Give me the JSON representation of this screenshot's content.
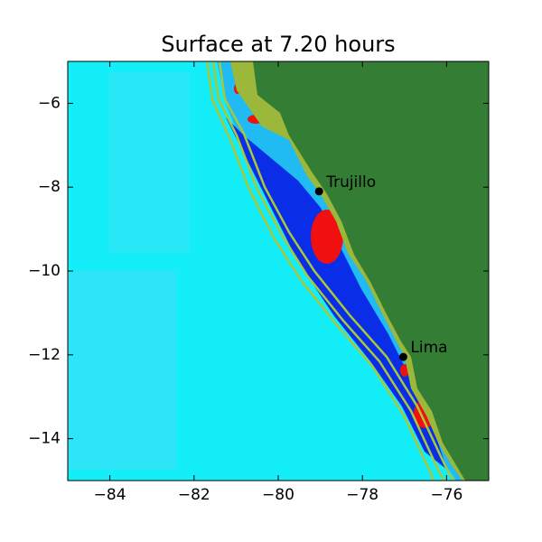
{
  "chart_data": {
    "type": "map",
    "title": "Surface at 7.20 hours",
    "xlim": [
      -85,
      -75
    ],
    "ylim": [
      -15,
      -5
    ],
    "xticks": [
      {
        "value": -84,
        "label": "−84"
      },
      {
        "value": -82,
        "label": "−82"
      },
      {
        "value": -80,
        "label": "−80"
      },
      {
        "value": -78,
        "label": "−78"
      },
      {
        "value": -76,
        "label": "−76"
      }
    ],
    "yticks": [
      {
        "value": -6,
        "label": "−6"
      },
      {
        "value": -8,
        "label": "−8"
      },
      {
        "value": -10,
        "label": "−10"
      },
      {
        "value": -12,
        "label": "−12"
      },
      {
        "value": -14,
        "label": "−14"
      }
    ],
    "cities": [
      {
        "name": "Trujillo",
        "x": -79.03,
        "y": -8.1
      },
      {
        "name": "Lima",
        "x": -77.03,
        "y": -12.05
      }
    ]
  }
}
